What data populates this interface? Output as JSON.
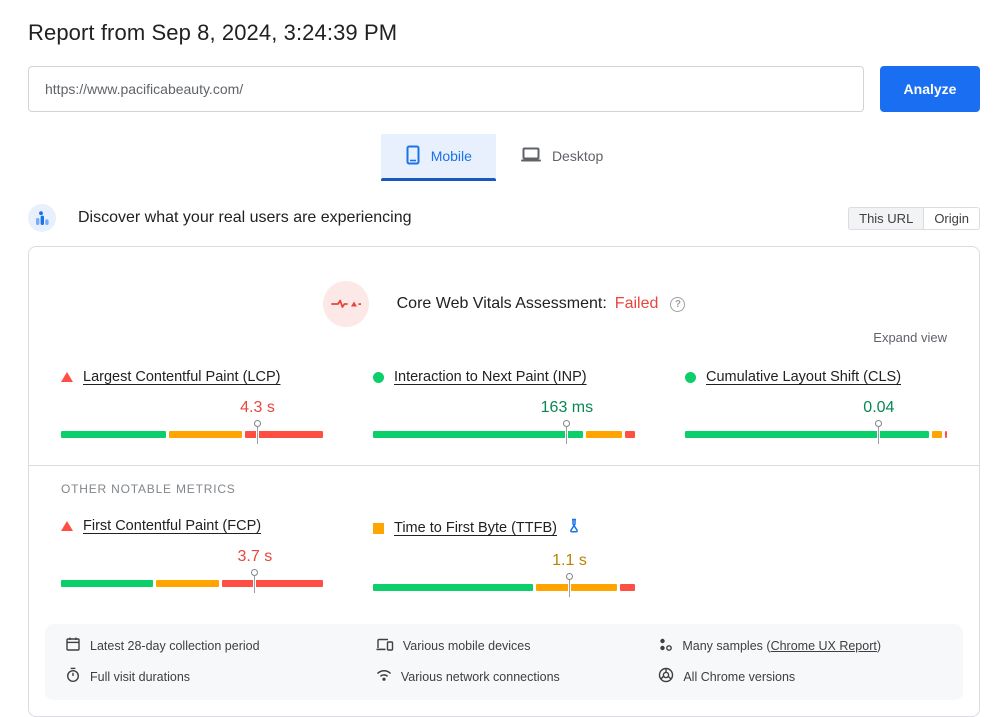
{
  "page": {
    "title": "Report from Sep 8, 2024, 3:24:39 PM"
  },
  "url_bar": {
    "value": "https://www.pacificabeauty.com/",
    "analyze_label": "Analyze"
  },
  "tabs": [
    {
      "label": "Mobile",
      "icon": "mobile-phone-icon",
      "selected": true
    },
    {
      "label": "Desktop",
      "icon": "laptop-icon",
      "selected": false
    }
  ],
  "field_section": {
    "heading": "Discover what your real users are experiencing",
    "scope_options": [
      {
        "label": "This URL",
        "selected": true
      },
      {
        "label": "Origin",
        "selected": false
      }
    ]
  },
  "assessment": {
    "label": "Core Web Vitals Assessment:",
    "result": "Failed",
    "help_glyph": "?",
    "expand_label": "Expand view",
    "other_metrics_label": "OTHER NOTABLE METRICS"
  },
  "colors": {
    "accent_blue": "#1a73e8",
    "good": "#0cce6b",
    "needs_improvement": "#ffa400",
    "poor": "#ff4e42",
    "good_text": "#088751",
    "poor_text": "#e8453c",
    "ni_text": "#b98300"
  },
  "chart_data": {
    "type": "bar",
    "note": "horizontal stacked distribution bars, p75 marker at 75% of track",
    "series": [
      {
        "name": "Largest Contentful Paint (LCP)",
        "value": "4.3 s",
        "status": "poor",
        "icon": "triangle",
        "good_pct": 40,
        "ni_pct": 28,
        "poor_pct": 32,
        "marker_pct": 75
      },
      {
        "name": "Interaction to Next Paint (INP)",
        "value": "163 ms",
        "status": "good",
        "icon": "circle",
        "good_pct": 80,
        "ni_pct": 14,
        "poor_pct": 6,
        "marker_pct": 74
      },
      {
        "name": "Cumulative Layout Shift (CLS)",
        "value": "0.04",
        "status": "good",
        "icon": "circle",
        "good_pct": 93,
        "ni_pct": 4,
        "poor_pct": 3,
        "marker_pct": 74
      },
      {
        "name": "First Contentful Paint (FCP)",
        "value": "3.7 s",
        "status": "poor",
        "icon": "triangle",
        "good_pct": 35,
        "ni_pct": 24,
        "poor_pct": 41,
        "marker_pct": 74
      },
      {
        "name": "Time to First Byte (TTFB)",
        "value": "1.1 s",
        "status": "ni",
        "icon": "square",
        "experiment_icon": true,
        "good_pct": 61,
        "ni_pct": 31,
        "poor_pct": 8,
        "marker_pct": 75
      }
    ]
  },
  "metric_rows": {
    "core_indices": [
      0,
      1,
      2
    ],
    "other_indices": [
      3,
      4
    ]
  },
  "footer": {
    "items": [
      {
        "icon": "calendar-icon",
        "text": "Latest 28-day collection period"
      },
      {
        "icon": "devices-icon",
        "text": "Various mobile devices"
      },
      {
        "icon": "samples-icon",
        "text_prefix": "Many samples (",
        "link": "Chrome UX Report",
        "text_suffix": ")"
      },
      {
        "icon": "stopwatch-icon",
        "text": "Full visit durations"
      },
      {
        "icon": "network-icon",
        "text": "Various network connections"
      },
      {
        "icon": "chrome-icon",
        "text": "All Chrome versions"
      }
    ]
  }
}
